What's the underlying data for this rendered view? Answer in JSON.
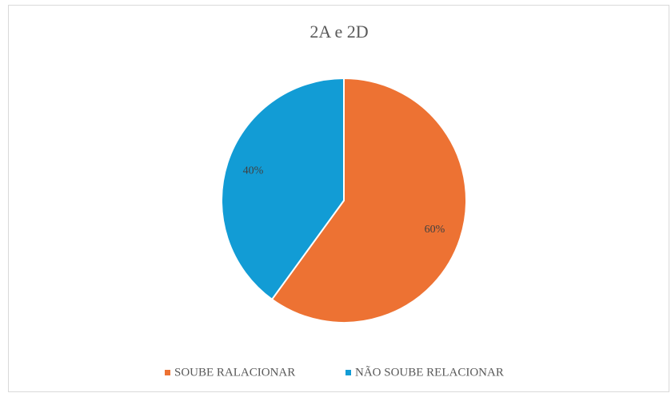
{
  "chart_data": {
    "type": "pie",
    "title": "2A e 2D",
    "categories": [
      "SOUBE RALACIONAR",
      "NÃO SOUBE RELACIONAR"
    ],
    "values": [
      60,
      40
    ],
    "value_labels": [
      "60%",
      "40%"
    ],
    "colors": [
      "#ED7233",
      "#129CD5"
    ],
    "legend": "bottom"
  }
}
